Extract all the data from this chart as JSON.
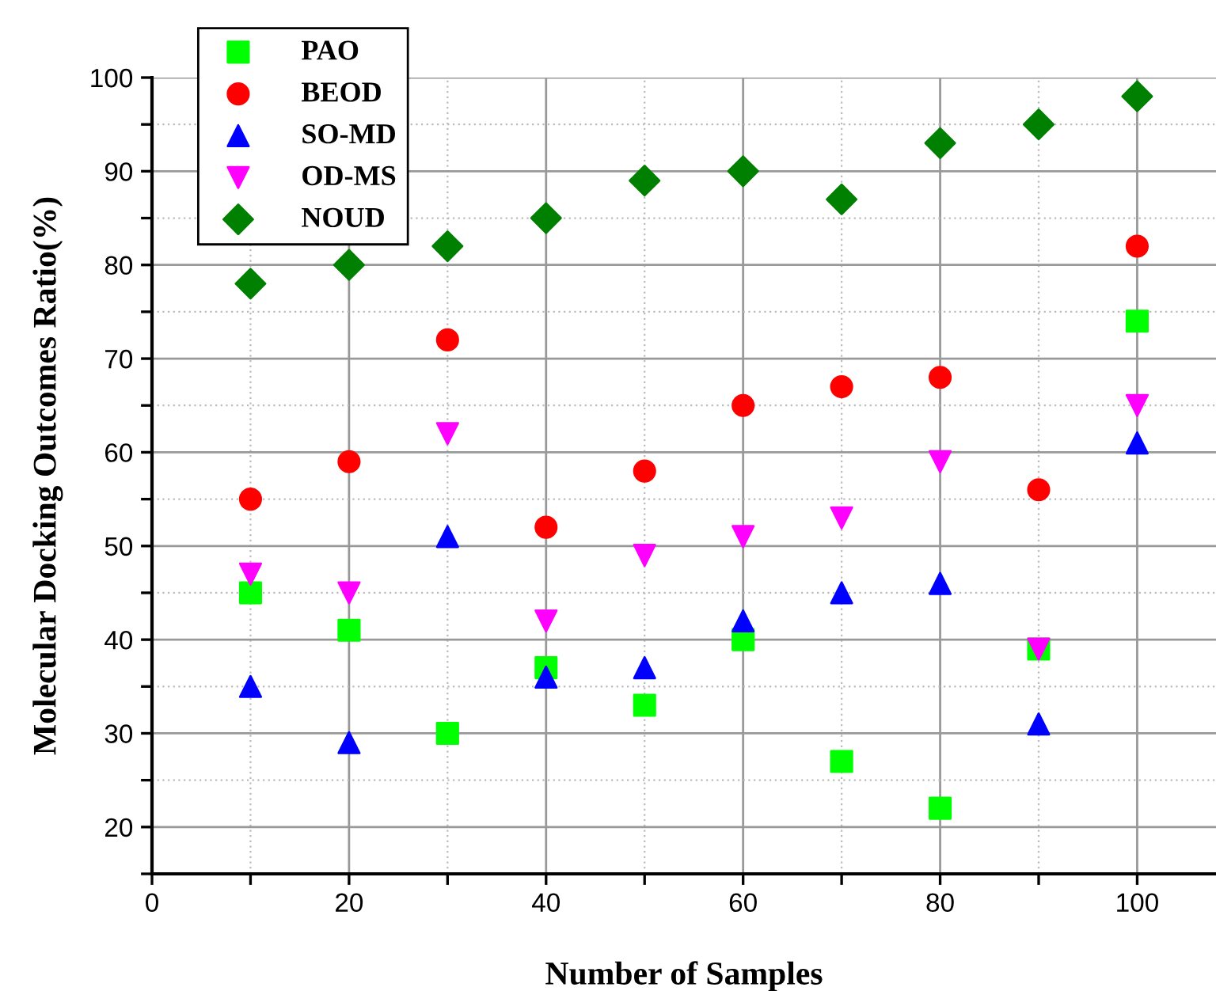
{
  "chart_data": {
    "type": "scatter",
    "xlabel": "Number of Samples",
    "ylabel": "Molecular Docking Outcomes Ratio(%)",
    "x": [
      10,
      20,
      30,
      40,
      50,
      60,
      70,
      80,
      90,
      100
    ],
    "series": [
      {
        "name": "PAO",
        "color": "#00ff00",
        "marker": "square",
        "values": [
          45,
          41,
          30,
          37,
          33,
          40,
          27,
          22,
          39,
          74
        ]
      },
      {
        "name": "BEOD",
        "color": "#ff0000",
        "marker": "circle",
        "values": [
          55,
          59,
          72,
          52,
          58,
          65,
          67,
          68,
          56,
          82
        ]
      },
      {
        "name": "SO-MD",
        "color": "#0000ff",
        "marker": "triangle",
        "values": [
          35,
          29,
          51,
          36,
          37,
          42,
          45,
          46,
          31,
          61
        ]
      },
      {
        "name": "OD-MS",
        "color": "#ff00ff",
        "marker": "triangle_down",
        "values": [
          47,
          45,
          62,
          42,
          49,
          51,
          53,
          59,
          39,
          65
        ]
      },
      {
        "name": "NOUD",
        "color": "#008000",
        "marker": "diamond",
        "values": [
          78,
          80,
          82,
          85,
          89,
          90,
          87,
          93,
          95,
          98
        ]
      }
    ],
    "xlim": [
      0,
      108
    ],
    "ylim": [
      15,
      100
    ],
    "xticks": [
      0,
      {
        "value": 10,
        "label": null
      },
      20,
      {
        "value": 30,
        "label": null
      },
      40,
      {
        "value": 50,
        "label": null
      },
      60,
      {
        "value": 70,
        "label": null
      },
      80,
      {
        "value": 90,
        "label": null
      },
      100
    ],
    "yticks": [
      {
        "value": 15,
        "label": null
      },
      20,
      {
        "value": 25,
        "label": null
      },
      30,
      {
        "value": 35,
        "label": null
      },
      40,
      {
        "value": 45,
        "label": null
      },
      50,
      {
        "value": 55,
        "label": null
      },
      60,
      {
        "value": 65,
        "label": null
      },
      70,
      {
        "value": 75,
        "label": null
      },
      80,
      {
        "value": 85,
        "label": null
      },
      90,
      {
        "value": 95,
        "label": null
      },
      100
    ],
    "grid": true,
    "legend": "top left"
  }
}
